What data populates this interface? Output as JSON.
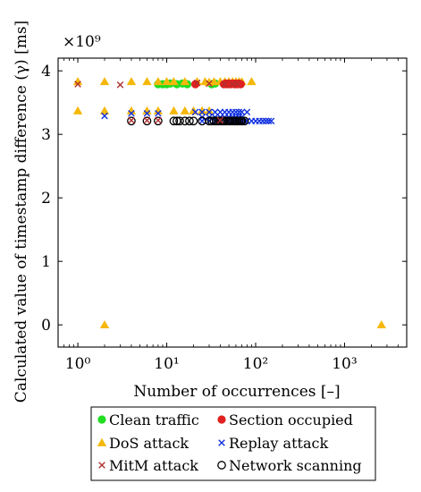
{
  "chart_data": {
    "type": "scatter",
    "title": "",
    "xlabel": "Number of occurrences [–]",
    "ylabel": "Calculated value of timestamp difference (γ) [ms]",
    "y_multiplier": "×10⁹",
    "x_scale": "log",
    "xlim": [
      0.6,
      5000
    ],
    "ylim": [
      -0.35,
      4.2
    ],
    "x_ticks": [
      1,
      10,
      100,
      1000
    ],
    "x_tick_labels": [
      "10⁰",
      "10¹",
      "10²",
      "10³"
    ],
    "y_ticks": [
      0,
      1,
      2,
      3,
      4
    ],
    "y_tick_labels": [
      "0",
      "1",
      "2",
      "3",
      "4"
    ],
    "grid": false,
    "legend_position": "bottom",
    "series": [
      {
        "name": "Clean traffic",
        "marker": "circle-filled",
        "color": "#22dd22",
        "x": [
          8,
          9,
          10,
          11,
          13,
          15,
          17,
          32,
          35
        ],
        "y": [
          3.79,
          3.79,
          3.79,
          3.8,
          3.79,
          3.8,
          3.79,
          3.79,
          3.8
        ]
      },
      {
        "name": "Section occupied",
        "marker": "circle-filled",
        "color": "#e02020",
        "x": [
          21,
          44,
          46,
          48,
          50,
          52,
          55,
          58,
          60,
          62,
          65,
          68
        ],
        "y": [
          3.79,
          3.79,
          3.8,
          3.79,
          3.8,
          3.79,
          3.8,
          3.79,
          3.8,
          3.79,
          3.8,
          3.79
        ]
      },
      {
        "name": "DoS attack",
        "marker": "triangle",
        "color": "#f5b80a",
        "x": [
          1,
          2,
          4,
          6,
          8,
          10,
          12,
          16,
          22,
          27,
          30,
          34,
          40,
          45,
          50,
          55,
          60,
          65,
          70,
          90,
          1,
          2,
          4,
          6,
          8,
          12,
          16,
          20,
          25,
          30,
          2,
          2600
        ],
        "y": [
          3.83,
          3.83,
          3.83,
          3.83,
          3.83,
          3.83,
          3.83,
          3.83,
          3.83,
          3.83,
          3.82,
          3.83,
          3.83,
          3.83,
          3.83,
          3.83,
          3.83,
          3.83,
          3.83,
          3.83,
          3.37,
          3.37,
          3.37,
          3.37,
          3.37,
          3.37,
          3.37,
          3.37,
          3.37,
          3.37,
          0.0,
          0.0
        ]
      },
      {
        "name": "Replay attack",
        "marker": "x",
        "color": "#1030e0",
        "x": [
          2,
          4,
          6,
          8,
          21,
          25,
          30,
          35,
          40,
          45,
          50,
          55,
          60,
          65,
          70,
          80,
          25,
          30,
          35,
          40,
          45,
          50,
          55,
          60,
          65,
          70,
          75,
          80,
          90,
          100,
          110,
          120,
          130,
          140,
          150,
          25,
          30,
          35,
          40,
          45,
          50,
          55,
          60,
          65,
          70
        ],
        "y": [
          3.29,
          3.33,
          3.33,
          3.33,
          3.35,
          3.35,
          3.35,
          3.35,
          3.35,
          3.35,
          3.35,
          3.35,
          3.35,
          3.35,
          3.35,
          3.35,
          3.21,
          3.21,
          3.21,
          3.21,
          3.21,
          3.21,
          3.21,
          3.21,
          3.21,
          3.21,
          3.21,
          3.21,
          3.21,
          3.21,
          3.21,
          3.21,
          3.21,
          3.21,
          3.21,
          3.27,
          3.27,
          3.27,
          3.27,
          3.27,
          3.27,
          3.27,
          3.27,
          3.27,
          3.27
        ]
      },
      {
        "name": "MitM attack",
        "marker": "x",
        "color": "#b03030",
        "x": [
          1,
          3,
          22,
          30,
          45,
          55,
          62,
          4,
          6,
          8,
          40
        ],
        "y": [
          3.79,
          3.78,
          3.81,
          3.8,
          3.79,
          3.79,
          3.8,
          3.22,
          3.22,
          3.22,
          3.22
        ]
      },
      {
        "name": "Network scanning",
        "marker": "circle-open",
        "color": "#000000",
        "x": [
          4,
          6,
          8,
          12,
          13,
          14,
          16,
          18,
          20,
          25,
          30,
          32,
          34,
          36,
          38,
          40,
          42,
          44,
          46,
          48,
          50,
          52,
          55,
          58,
          60,
          62,
          65,
          68,
          70,
          75
        ],
        "y": [
          3.21,
          3.21,
          3.21,
          3.21,
          3.21,
          3.21,
          3.21,
          3.21,
          3.21,
          3.21,
          3.21,
          3.21,
          3.21,
          3.21,
          3.21,
          3.21,
          3.21,
          3.21,
          3.21,
          3.21,
          3.21,
          3.21,
          3.21,
          3.21,
          3.21,
          3.21,
          3.21,
          3.21,
          3.21,
          3.21
        ]
      }
    ]
  }
}
